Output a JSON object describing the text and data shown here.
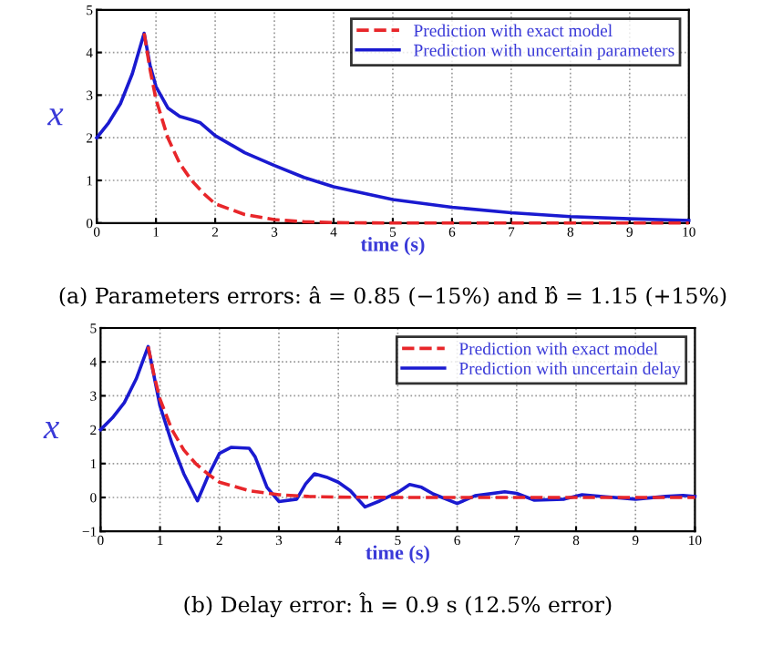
{
  "chart_data": [
    {
      "type": "line",
      "title": "(a) Parameters errors: â = 0.85 (−15%) and b̂ = 1.15 (+15%)",
      "xlabel": "time (s)",
      "ylabel": "x",
      "xlim": [
        0,
        10
      ],
      "ylim": [
        0,
        5
      ],
      "xticks": [
        0,
        1,
        2,
        3,
        4,
        5,
        6,
        7,
        8,
        9,
        10
      ],
      "yticks": [
        0,
        1,
        2,
        3,
        4,
        5
      ],
      "grid": true,
      "legend": "top right",
      "series": [
        {
          "name": "Prediction with exact model",
          "color": "#e8262a",
          "line_style": "dashed",
          "x": [
            0.8,
            0.9,
            1.0,
            1.2,
            1.4,
            1.6,
            1.8,
            2.0,
            2.5,
            3.0,
            3.5,
            4.0,
            5.0,
            6.0,
            8.0,
            10.0
          ],
          "values": [
            4.45,
            3.6,
            2.9,
            2.0,
            1.4,
            1.0,
            0.7,
            0.45,
            0.2,
            0.08,
            0.03,
            0.01,
            0,
            0,
            0,
            0
          ]
        },
        {
          "name": "Prediction with uncertain parameters",
          "color": "#1a1ad0",
          "line_style": "solid",
          "x": [
            0,
            0.2,
            0.4,
            0.6,
            0.8,
            0.9,
            1.0,
            1.2,
            1.4,
            1.6,
            1.75,
            2.0,
            2.5,
            3.0,
            3.5,
            4.0,
            5.0,
            6.0,
            7.0,
            8.0,
            9.0,
            10.0
          ],
          "values": [
            2,
            2.35,
            2.8,
            3.5,
            4.45,
            3.7,
            3.2,
            2.7,
            2.5,
            2.42,
            2.35,
            2.05,
            1.65,
            1.35,
            1.07,
            0.85,
            0.55,
            0.37,
            0.24,
            0.15,
            0.1,
            0.06
          ]
        }
      ]
    },
    {
      "type": "line",
      "title": "(b) Delay error: ĥ = 0.9 s (12.5% error)",
      "xlabel": "time (s)",
      "ylabel": "x",
      "xlim": [
        0,
        10
      ],
      "ylim": [
        -1,
        5
      ],
      "xticks": [
        0,
        1,
        2,
        3,
        4,
        5,
        6,
        7,
        8,
        9,
        10
      ],
      "yticks": [
        {
          "value": -1,
          "label": "−1"
        },
        0,
        1,
        2,
        3,
        4,
        5
      ],
      "grid": true,
      "legend": "top right",
      "series": [
        {
          "name": "Prediction with exact model",
          "color": "#e8262a",
          "line_style": "dashed",
          "x": [
            0.8,
            0.9,
            1.0,
            1.2,
            1.4,
            1.6,
            1.8,
            2.0,
            2.5,
            3.0,
            3.5,
            4.0,
            5.0,
            6.0,
            8.0,
            10.0
          ],
          "values": [
            4.45,
            3.6,
            2.9,
            2.0,
            1.4,
            1.0,
            0.7,
            0.45,
            0.2,
            0.08,
            0.03,
            0.01,
            0,
            0,
            0,
            0
          ]
        },
        {
          "name": "Prediction with uncertain delay",
          "color": "#1a1ad0",
          "line_style": "solid",
          "x": [
            0,
            0.2,
            0.4,
            0.6,
            0.8,
            1.0,
            1.2,
            1.4,
            1.63,
            1.8,
            2.0,
            2.2,
            2.5,
            2.6,
            2.8,
            3.0,
            3.3,
            3.45,
            3.6,
            3.8,
            4.0,
            4.2,
            4.45,
            4.7,
            5.0,
            5.2,
            5.4,
            5.6,
            6.0,
            6.3,
            6.8,
            7.0,
            7.3,
            7.8,
            8.1,
            8.5,
            9.0,
            9.5,
            9.8,
            10.0
          ],
          "values": [
            2,
            2.35,
            2.8,
            3.5,
            4.45,
            2.7,
            1.6,
            0.7,
            -0.1,
            0.6,
            1.3,
            1.48,
            1.45,
            1.2,
            0.3,
            -0.12,
            -0.05,
            0.4,
            0.7,
            0.6,
            0.45,
            0.2,
            -0.28,
            -0.1,
            0.15,
            0.38,
            0.3,
            0.1,
            -0.18,
            0.05,
            0.17,
            0.12,
            -0.08,
            -0.05,
            0.08,
            0.02,
            -0.05,
            0.03,
            0.06,
            0.03
          ]
        }
      ]
    }
  ]
}
